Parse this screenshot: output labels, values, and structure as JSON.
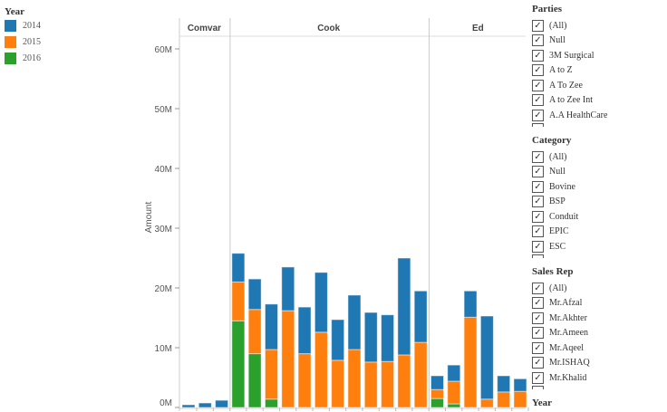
{
  "legend": {
    "title": "Year",
    "items": [
      {
        "label": "2014",
        "color": "#1f77b4"
      },
      {
        "label": "2015",
        "color": "#ff7f0e"
      },
      {
        "label": "2016",
        "color": "#2ca02c"
      }
    ]
  },
  "filters": [
    {
      "title": "Parties",
      "items": [
        "(All)",
        "Null",
        "3M Surgical",
        "A to Z",
        "A To Zee",
        "A to Zee Int",
        "A.A HealthCare"
      ]
    },
    {
      "title": "Category",
      "items": [
        "(All)",
        "Null",
        "Bovine",
        "BSP",
        "Conduit",
        "EPIC",
        "ESC"
      ]
    },
    {
      "title": "Sales  Rep",
      "items": [
        "(All)",
        "Mr.Afzal",
        "Mr.Akhter",
        "Mr.Ameen",
        "Mr.Aqeel",
        "Mr.ISHAQ",
        "Mr.Khalid"
      ]
    },
    {
      "title": "Year",
      "items": []
    }
  ],
  "chart_data": {
    "type": "bar",
    "stacked": true,
    "ylabel": "Amount",
    "ylim": [
      0,
      62
    ],
    "yticks": [
      "0M",
      "10M",
      "20M",
      "30M",
      "40M",
      "50M",
      "60M"
    ],
    "series_names": [
      "2014",
      "2015",
      "2016"
    ],
    "panels": [
      {
        "name": "Comvar",
        "bars": [
          [
            0.45,
            0,
            0
          ],
          [
            0.75,
            0,
            0
          ],
          [
            1.2,
            0,
            0
          ]
        ]
      },
      {
        "name": "Cook",
        "bars": [
          [
            4.8,
            6.5,
            14.5
          ],
          [
            5.1,
            7.4,
            9
          ],
          [
            7.6,
            8.3,
            1.4
          ],
          [
            7.3,
            16.2,
            0
          ],
          [
            7.8,
            9,
            0
          ],
          [
            10,
            12.6,
            0
          ],
          [
            6.8,
            7.9,
            0
          ],
          [
            9.1,
            9.7,
            0
          ],
          [
            8.3,
            7.6,
            0
          ],
          [
            7.8,
            7.7,
            0
          ],
          [
            16.2,
            8.8,
            0
          ],
          [
            8.6,
            10.9,
            0
          ]
        ]
      },
      {
        "name": "Ed",
        "bars": [
          [
            2.3,
            1.5,
            1.5
          ],
          [
            2.7,
            3.8,
            0.6
          ],
          [
            4.4,
            15.1,
            0
          ],
          [
            13.9,
            1.4,
            0
          ],
          [
            2.7,
            2.6,
            0
          ],
          [
            2.1,
            2.7,
            0
          ]
        ]
      }
    ]
  }
}
